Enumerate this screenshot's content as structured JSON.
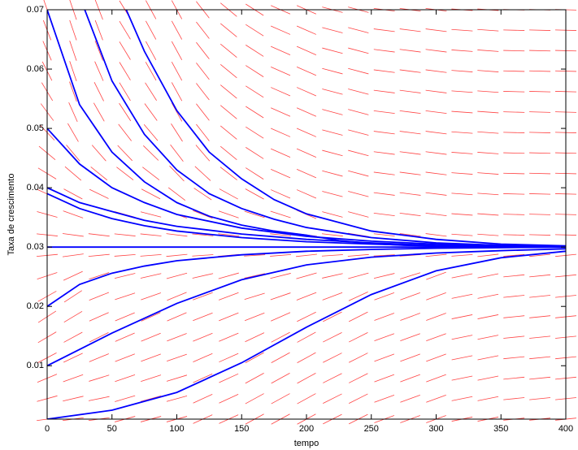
{
  "chart_data": {
    "type": "line",
    "xlabel": "tempo",
    "ylabel": "Taxa de crescimento",
    "xlim": [
      0,
      400
    ],
    "xticks": [
      0,
      50,
      100,
      150,
      200,
      250,
      300,
      350,
      400
    ],
    "ylim": [
      0.001,
      0.07
    ],
    "yticks": [
      0.01,
      0.02,
      0.03,
      0.04,
      0.05,
      0.06,
      0.07
    ],
    "color": "#0000ff",
    "field_color": "#ff4444",
    "series": [
      {
        "x": [
          0,
          25,
          50,
          75,
          100,
          125,
          150,
          175,
          200,
          225,
          250,
          275,
          300,
          325,
          350,
          375,
          400
        ],
        "values": [
          0.07,
          0.054,
          0.046,
          0.041,
          0.0375,
          0.0352,
          0.0337,
          0.0327,
          0.032,
          0.0311,
          0.0306,
          0.0303,
          0.0302,
          0.0301,
          0.0301,
          0.03,
          0.03
        ]
      },
      {
        "x": [
          29,
          50,
          75,
          100,
          125,
          150,
          175,
          200,
          250,
          300,
          350,
          400
        ],
        "values": [
          0.07,
          0.058,
          0.049,
          0.043,
          0.039,
          0.0365,
          0.0347,
          0.0333,
          0.0316,
          0.0307,
          0.0303,
          0.0301
        ]
      },
      {
        "x": [
          61,
          75,
          100,
          125,
          150,
          175,
          200,
          250,
          300,
          350,
          400
        ],
        "values": [
          0.07,
          0.063,
          0.053,
          0.046,
          0.0415,
          0.038,
          0.0356,
          0.0327,
          0.0313,
          0.0305,
          0.0302
        ]
      },
      {
        "x": [
          0,
          25,
          50,
          75,
          100,
          150,
          200,
          250,
          300,
          400
        ],
        "values": [
          0.05,
          0.044,
          0.04,
          0.0375,
          0.0355,
          0.0332,
          0.0318,
          0.031,
          0.0305,
          0.0301
        ]
      },
      {
        "x": [
          0,
          25,
          50,
          75,
          100,
          150,
          200,
          250,
          300,
          400
        ],
        "values": [
          0.04,
          0.0375,
          0.036,
          0.0345,
          0.0335,
          0.0322,
          0.0313,
          0.0307,
          0.0303,
          0.0301
        ]
      },
      {
        "x": [
          0,
          25,
          50,
          75,
          100,
          150,
          200,
          250,
          300,
          400
        ],
        "values": [
          0.039,
          0.0365,
          0.0348,
          0.0336,
          0.0327,
          0.0316,
          0.0309,
          0.0305,
          0.0302,
          0.03
        ]
      },
      {
        "x": [
          0,
          400
        ],
        "values": [
          0.03,
          0.03
        ]
      },
      {
        "x": [
          0,
          25,
          50,
          75,
          100,
          150,
          200,
          250,
          300,
          400
        ],
        "values": [
          0.02,
          0.0237,
          0.0256,
          0.0268,
          0.0277,
          0.0287,
          0.0293,
          0.0296,
          0.0298,
          0.03
        ]
      },
      {
        "x": [
          0,
          50,
          100,
          150,
          200,
          250,
          300,
          350,
          400
        ],
        "values": [
          0.01,
          0.0155,
          0.0205,
          0.0245,
          0.027,
          0.0283,
          0.029,
          0.0294,
          0.0297
        ]
      },
      {
        "x": [
          0,
          50,
          100,
          150,
          200,
          250,
          300,
          350,
          400
        ],
        "values": [
          0.001,
          0.0025,
          0.0055,
          0.0105,
          0.0165,
          0.022,
          0.026,
          0.0282,
          0.0293
        ]
      }
    ]
  }
}
